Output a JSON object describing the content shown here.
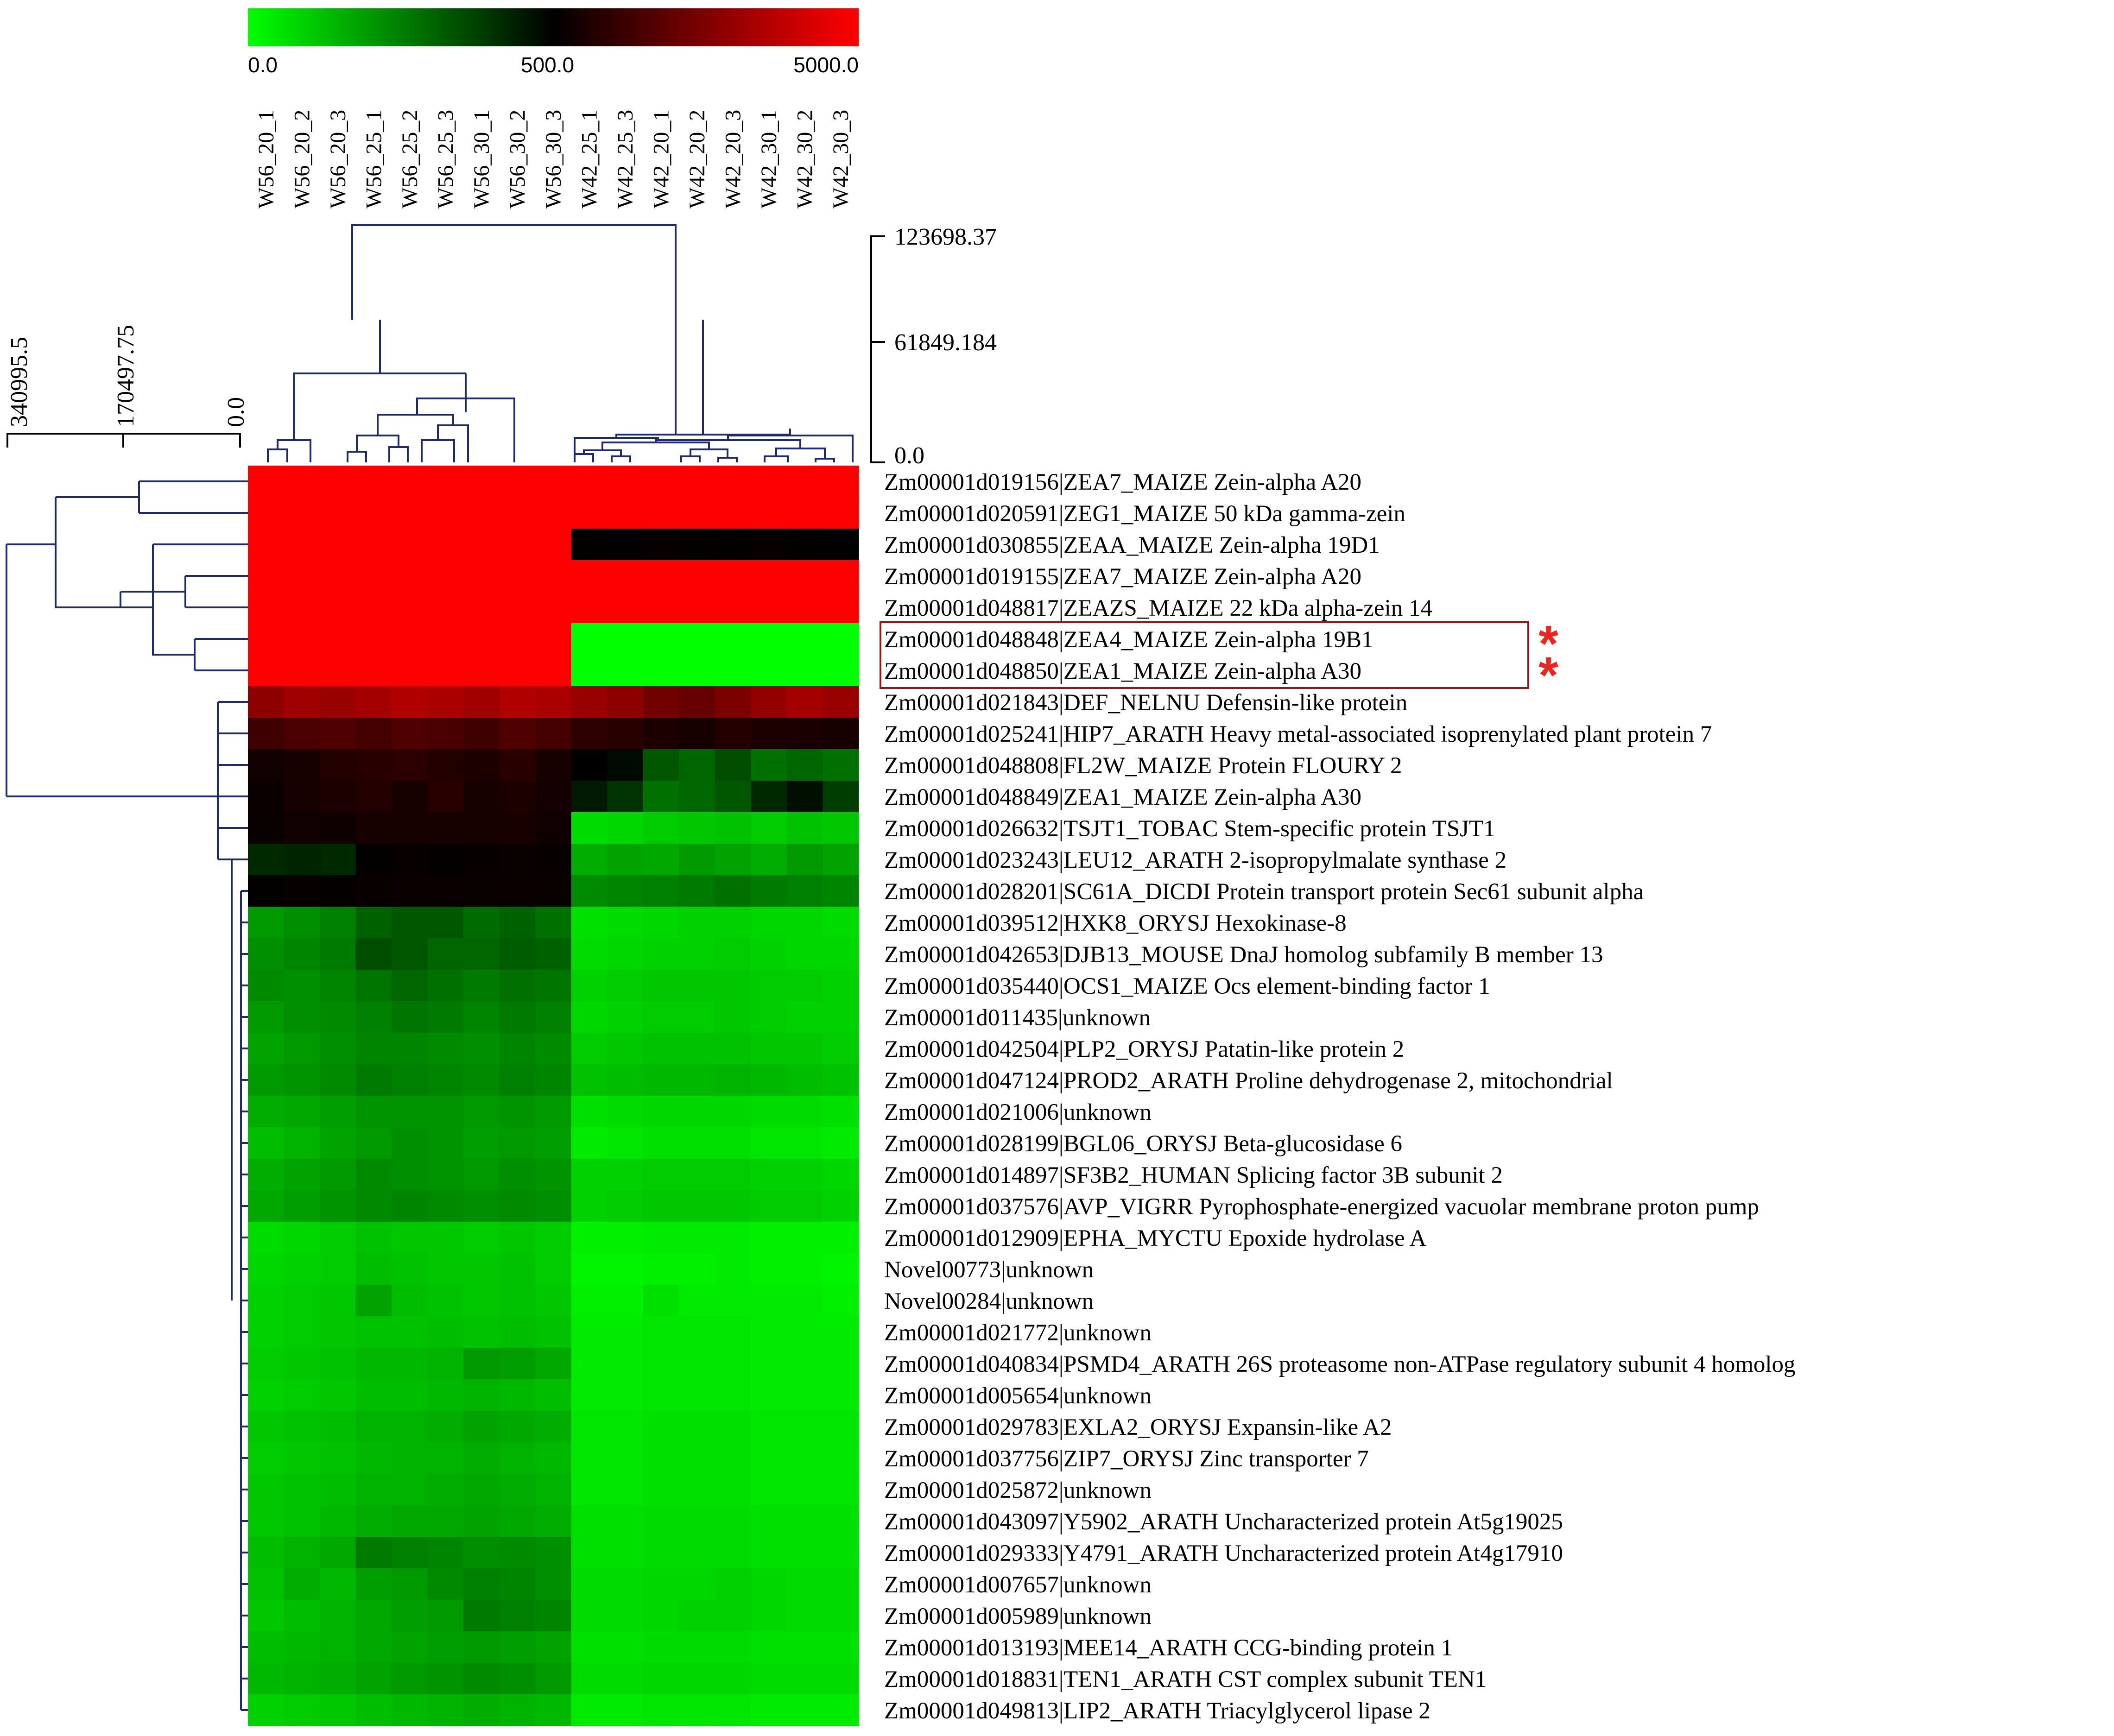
{
  "chart_data": {
    "type": "heatmap",
    "color_scale": {
      "min_label": "0.0",
      "mid_label": "500.0",
      "max_label": "5000.0",
      "colors": [
        "#00ff00",
        "#000000",
        "#ff0000"
      ]
    },
    "columns": [
      "W56_20_1",
      "W56_20_2",
      "W56_20_3",
      "W56_25_1",
      "W56_25_2",
      "W56_25_3",
      "W56_30_1",
      "W56_30_2",
      "W56_30_3",
      "W42_25_1",
      "W42_25_3",
      "W42_20_1",
      "W42_20_2",
      "W42_20_3",
      "W42_30_1",
      "W42_30_2",
      "W42_30_3"
    ],
    "col_dendrogram_ticks": [
      "123698.37",
      "61849.184",
      "0.0"
    ],
    "row_dendrogram_ticks": [
      "340995.5",
      "170497.75",
      "0.0"
    ],
    "rows": [
      {
        "id": "Zm00001d019156",
        "desc": "ZEA7_MAIZE Zein-alpha A20",
        "values": [
          5000,
          5000,
          5000,
          5000,
          5000,
          5000,
          5000,
          5000,
          5000,
          5000,
          5000,
          5000,
          5000,
          5000,
          5000,
          5000,
          5000
        ]
      },
      {
        "id": "Zm00001d020591",
        "desc": "ZEG1_MAIZE 50 kDa gamma-zein",
        "values": [
          5000,
          5000,
          5000,
          5000,
          5000,
          5000,
          5000,
          5000,
          5000,
          5000,
          5000,
          5000,
          5000,
          5000,
          5000,
          5000,
          5000
        ]
      },
      {
        "id": "Zm00001d030855",
        "desc": "ZEAA_MAIZE Zein-alpha 19D1",
        "values": [
          5000,
          5000,
          5000,
          5000,
          5000,
          5000,
          5000,
          5000,
          5000,
          560,
          540,
          600,
          580,
          550,
          620,
          560,
          540
        ]
      },
      {
        "id": "Zm00001d019155",
        "desc": "ZEA7_MAIZE Zein-alpha A20",
        "values": [
          5000,
          5000,
          5000,
          5000,
          5000,
          5000,
          5000,
          5000,
          5000,
          5000,
          5000,
          5000,
          5000,
          5000,
          5000,
          5000,
          5000
        ]
      },
      {
        "id": "Zm00001d048817",
        "desc": "ZEAZS_MAIZE 22 kDa alpha-zein 14",
        "values": [
          5000,
          5000,
          5000,
          5000,
          5000,
          5000,
          5000,
          5000,
          5000,
          5000,
          5000,
          5000,
          5000,
          5000,
          5000,
          5000,
          5000
        ]
      },
      {
        "id": "Zm00001d048848",
        "desc": "ZEA4_MAIZE Zein-alpha 19B1",
        "values": [
          5000,
          5000,
          5000,
          5000,
          5000,
          5000,
          5000,
          5000,
          5000,
          0,
          0,
          0,
          0,
          0,
          0,
          0,
          0
        ]
      },
      {
        "id": "Zm00001d048850",
        "desc": "ZEA1_MAIZE Zein-alpha A30",
        "values": [
          5000,
          5000,
          5000,
          5000,
          5000,
          5000,
          5000,
          5000,
          5000,
          0,
          0,
          0,
          0,
          0,
          0,
          0,
          0
        ]
      },
      {
        "id": "Zm00001d021843",
        "desc": "DEF_NELNU Defensin-like protein",
        "values": [
          3000,
          3300,
          3200,
          3400,
          3600,
          3500,
          3300,
          3600,
          3500,
          3200,
          3000,
          2500,
          2300,
          2700,
          3100,
          3400,
          3200
        ]
      },
      {
        "id": "Zm00001d025241",
        "desc": "HIP7_ARATH Heavy metal-associated isoprenylated plant protein 7",
        "values": [
          1600,
          1800,
          1900,
          1700,
          1900,
          1800,
          1600,
          1900,
          1700,
          1300,
          1200,
          1000,
          900,
          1100,
          1000,
          950,
          900
        ]
      },
      {
        "id": "Zm00001d048808",
        "desc": "FL2W_MAIZE Protein FLOURY 2",
        "values": [
          800,
          900,
          1100,
          1200,
          1300,
          1100,
          1000,
          1200,
          900,
          500,
          480,
          330,
          300,
          350,
          280,
          300,
          280
        ]
      },
      {
        "id": "Zm00001d048849",
        "desc": "ZEA1_MAIZE Zein-alpha A30",
        "values": [
          700,
          900,
          1000,
          1100,
          900,
          1200,
          900,
          1000,
          850,
          450,
          400,
          280,
          300,
          330,
          420,
          470,
          380
        ]
      },
      {
        "id": "Zm00001d026632",
        "desc": "TSJT1_TOBAC Stem-specific protein TSJT1",
        "values": [
          650,
          800,
          760,
          880,
          900,
          880,
          880,
          940,
          800,
          70,
          80,
          100,
          110,
          120,
          100,
          120,
          110
        ]
      },
      {
        "id": "Zm00001d023243",
        "desc": "LEU12_ARATH 2-isopropylmalate synthase 2",
        "values": [
          420,
          430,
          420,
          550,
          600,
          580,
          600,
          650,
          600,
          160,
          180,
          170,
          200,
          180,
          160,
          200,
          180
        ]
      },
      {
        "id": "Zm00001d028201",
        "desc": "SC61A_DICDI Protein transport protein Sec61 subunit alpha",
        "values": [
          560,
          600,
          580,
          640,
          700,
          680,
          650,
          700,
          660,
          230,
          240,
          250,
          260,
          280,
          260,
          250,
          240
        ]
      },
      {
        "id": "Zm00001d039512",
        "desc": "HXK8_ORYSJ Hexokinase-8",
        "values": [
          200,
          220,
          250,
          310,
          330,
          330,
          290,
          310,
          280,
          60,
          70,
          80,
          90,
          90,
          80,
          80,
          70
        ]
      },
      {
        "id": "Zm00001d042653",
        "desc": "DJB13_MOUSE DnaJ homolog subfamily B member 13",
        "values": [
          220,
          240,
          260,
          350,
          330,
          300,
          300,
          320,
          310,
          70,
          80,
          90,
          90,
          100,
          90,
          80,
          80
        ]
      },
      {
        "id": "Zm00001d035440",
        "desc": "OCS1_MAIZE Ocs element-binding factor 1",
        "values": [
          230,
          220,
          240,
          270,
          300,
          280,
          260,
          280,
          270,
          90,
          100,
          110,
          110,
          110,
          100,
          100,
          90
        ]
      },
      {
        "id": "Zm00001d011435",
        "desc": "unknown",
        "values": [
          200,
          220,
          230,
          250,
          270,
          260,
          240,
          260,
          250,
          80,
          90,
          100,
          100,
          110,
          100,
          90,
          90
        ]
      },
      {
        "id": "Zm00001d042504",
        "desc": "PLP2_ORYSJ Patatin-like protein 2",
        "values": [
          180,
          200,
          220,
          240,
          240,
          230,
          220,
          240,
          230,
          100,
          110,
          120,
          120,
          120,
          110,
          110,
          100
        ]
      },
      {
        "id": "Zm00001d047124",
        "desc": "PROD2_ARATH Proline dehydrogenase 2, mitochondrial",
        "values": [
          200,
          210,
          230,
          260,
          250,
          240,
          230,
          250,
          240,
          120,
          130,
          140,
          140,
          150,
          140,
          130,
          120
        ]
      },
      {
        "id": "Zm00001d021006",
        "desc": "unknown",
        "values": [
          160,
          170,
          190,
          210,
          210,
          210,
          200,
          210,
          200,
          60,
          70,
          80,
          80,
          80,
          70,
          70,
          60
        ]
      },
      {
        "id": "Zm00001d028199",
        "desc": "BGL06_ORYSJ Beta-glucosidase 6",
        "values": [
          130,
          150,
          180,
          200,
          220,
          210,
          190,
          200,
          190,
          40,
          50,
          60,
          60,
          60,
          50,
          50,
          40
        ]
      },
      {
        "id": "Zm00001d014897",
        "desc": "SF3B2_HUMAN Splicing factor 3B subunit 2",
        "values": [
          160,
          180,
          200,
          230,
          220,
          210,
          200,
          220,
          210,
          90,
          90,
          100,
          100,
          100,
          90,
          90,
          80
        ]
      },
      {
        "id": "Zm00001d037576",
        "desc": "AVP_VIGRR Pyrophosphate-energized vacuolar membrane proton pump",
        "values": [
          170,
          190,
          210,
          230,
          240,
          230,
          220,
          230,
          220,
          90,
          100,
          110,
          110,
          110,
          100,
          100,
          90
        ]
      },
      {
        "id": "Zm00001d012909",
        "desc": "EPHA_MYCTU Epoxide hydrolase A",
        "values": [
          70,
          80,
          100,
          120,
          110,
          110,
          100,
          110,
          100,
          30,
          30,
          40,
          40,
          40,
          30,
          30,
          30
        ]
      },
      {
        "id": "Novel00773",
        "desc": "unknown",
        "values": [
          80,
          90,
          100,
          130,
          120,
          110,
          110,
          120,
          100,
          20,
          20,
          30,
          30,
          40,
          30,
          30,
          20
        ]
      },
      {
        "id": "Novel00284",
        "desc": "unknown",
        "values": [
          90,
          100,
          110,
          180,
          130,
          120,
          110,
          120,
          110,
          30,
          30,
          60,
          40,
          40,
          40,
          40,
          30
        ]
      },
      {
        "id": "Zm00001d021772",
        "desc": "unknown",
        "values": [
          90,
          100,
          110,
          120,
          120,
          130,
          120,
          130,
          120,
          40,
          40,
          50,
          50,
          50,
          40,
          40,
          40
        ]
      },
      {
        "id": "Zm00001d040834",
        "desc": "PSMD4_ARATH 26S proteasome non-ATPase regulatory subunit 4 homolog",
        "values": [
          100,
          110,
          120,
          140,
          140,
          150,
          200,
          190,
          170,
          40,
          40,
          50,
          50,
          50,
          40,
          40,
          40
        ]
      },
      {
        "id": "Zm00001d005654",
        "desc": "unknown",
        "values": [
          90,
          100,
          110,
          130,
          130,
          140,
          150,
          140,
          130,
          40,
          40,
          50,
          50,
          50,
          40,
          40,
          40
        ]
      },
      {
        "id": "Zm00001d029783",
        "desc": "EXLA2_ORYSJ Expansin-like A2",
        "values": [
          110,
          120,
          130,
          150,
          150,
          160,
          180,
          170,
          160,
          50,
          50,
          60,
          60,
          60,
          50,
          50,
          50
        ]
      },
      {
        "id": "Zm00001d037756",
        "desc": "ZIP7_ORYSJ Zinc transporter 7",
        "values": [
          100,
          110,
          120,
          140,
          150,
          150,
          160,
          150,
          140,
          50,
          50,
          60,
          60,
          60,
          50,
          50,
          50
        ]
      },
      {
        "id": "Zm00001d025872",
        "desc": "unknown",
        "values": [
          110,
          120,
          130,
          150,
          150,
          160,
          170,
          160,
          150,
          50,
          50,
          60,
          60,
          60,
          50,
          50,
          50
        ]
      },
      {
        "id": "Zm00001d043097",
        "desc": "Y5902_ARATH Uncharacterized protein At5g19025",
        "values": [
          110,
          120,
          140,
          160,
          170,
          170,
          180,
          170,
          160,
          60,
          60,
          70,
          70,
          70,
          60,
          60,
          60
        ]
      },
      {
        "id": "Zm00001d029333",
        "desc": "Y4791_ARATH Uncharacterized protein At4g17910",
        "values": [
          130,
          150,
          170,
          260,
          250,
          240,
          220,
          230,
          220,
          60,
          60,
          70,
          70,
          70,
          60,
          60,
          60
        ]
      },
      {
        "id": "Zm00001d007657",
        "desc": "unknown",
        "values": [
          120,
          160,
          140,
          190,
          200,
          230,
          250,
          240,
          220,
          70,
          70,
          80,
          80,
          90,
          80,
          70,
          70
        ]
      },
      {
        "id": "Zm00001d005989",
        "desc": "unknown",
        "values": [
          110,
          130,
          150,
          170,
          190,
          200,
          260,
          250,
          240,
          70,
          70,
          80,
          90,
          90,
          80,
          70,
          70
        ]
      },
      {
        "id": "Zm00001d013193",
        "desc": "MEE14_ARATH CCG-binding protein 1",
        "values": [
          130,
          140,
          150,
          170,
          180,
          190,
          200,
          190,
          180,
          60,
          60,
          70,
          70,
          70,
          60,
          60,
          60
        ]
      },
      {
        "id": "Zm00001d018831",
        "desc": "TEN1_ARATH CST complex subunit TEN1",
        "values": [
          140,
          150,
          160,
          180,
          200,
          210,
          230,
          220,
          200,
          70,
          70,
          80,
          80,
          80,
          70,
          70,
          70
        ]
      },
      {
        "id": "Zm00001d049813",
        "desc": "LIP2_ARATH Triacylglycerol lipase 2",
        "values": [
          90,
          100,
          110,
          130,
          140,
          150,
          160,
          150,
          140,
          40,
          40,
          50,
          50,
          50,
          40,
          40,
          40
        ]
      }
    ],
    "highlighted_rows": [
      "Zm00001d048848",
      "Zm00001d048850"
    ],
    "highlight_marker": "*",
    "highlight_color": "#e8281e",
    "box_color": "#8a1a1a",
    "dendrogram_color": "#1f2a6b"
  }
}
